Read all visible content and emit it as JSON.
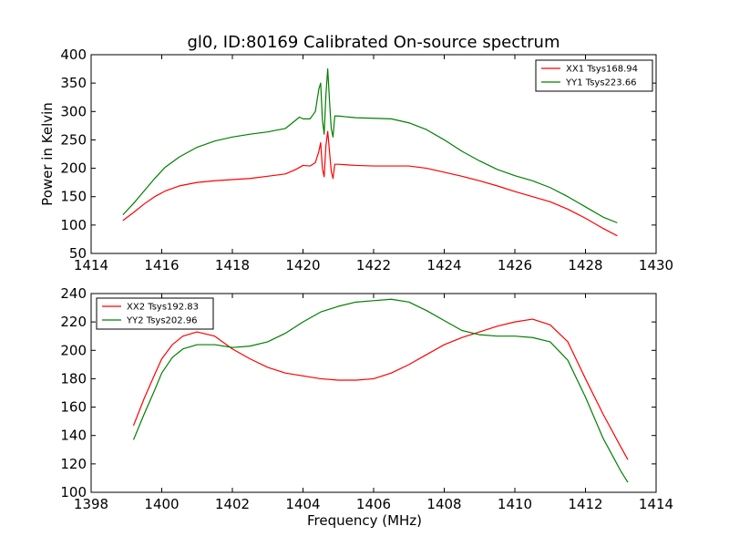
{
  "figure": {
    "title": "gl0, ID:80169 Calibrated On-source spectrum"
  },
  "chart_data": [
    {
      "type": "line",
      "title": "gl0, ID:80169 Calibrated On-source spectrum",
      "xlabel": "",
      "ylabel": "Power in Kelvin",
      "xlim": [
        1414,
        1430
      ],
      "ylim": [
        50,
        400
      ],
      "xticks": [
        1414,
        1416,
        1418,
        1420,
        1422,
        1424,
        1426,
        1428,
        1430
      ],
      "yticks": [
        50,
        100,
        150,
        200,
        250,
        300,
        350,
        400
      ],
      "grid": false,
      "legend_position": "top-right",
      "series": [
        {
          "name": "XX1 Tsys168.94",
          "color": "#ff0000",
          "x": [
            1414.9,
            1415.2,
            1415.5,
            1415.8,
            1416.1,
            1416.5,
            1417.0,
            1417.5,
            1418.0,
            1418.5,
            1419.0,
            1419.5,
            1419.8,
            1420.0,
            1420.2,
            1420.35,
            1420.45,
            1420.5,
            1420.55,
            1420.6,
            1420.65,
            1420.7,
            1420.75,
            1420.8,
            1420.85,
            1420.9,
            1421.0,
            1421.5,
            1422.0,
            1422.5,
            1423.0,
            1423.5,
            1424.0,
            1424.5,
            1425.0,
            1425.5,
            1426.0,
            1426.5,
            1427.0,
            1427.5,
            1428.0,
            1428.5,
            1428.9
          ],
          "values": [
            108,
            122,
            137,
            150,
            160,
            169,
            175,
            178,
            180,
            182,
            186,
            190,
            198,
            205,
            204,
            210,
            230,
            245,
            200,
            185,
            240,
            265,
            230,
            195,
            182,
            207,
            207,
            205,
            204,
            204,
            204,
            200,
            193,
            186,
            178,
            169,
            159,
            150,
            141,
            128,
            112,
            94,
            81
          ]
        },
        {
          "name": "YY1 Tsys223.66",
          "color": "#008000",
          "x": [
            1414.9,
            1415.2,
            1415.5,
            1415.8,
            1416.1,
            1416.5,
            1417.0,
            1417.5,
            1418.0,
            1418.5,
            1419.0,
            1419.5,
            1419.7,
            1419.9,
            1420.0,
            1420.2,
            1420.35,
            1420.45,
            1420.5,
            1420.55,
            1420.6,
            1420.65,
            1420.7,
            1420.75,
            1420.8,
            1420.85,
            1420.9,
            1421.0,
            1421.5,
            1422.0,
            1422.5,
            1423.0,
            1423.5,
            1424.0,
            1424.5,
            1425.0,
            1425.5,
            1426.0,
            1426.5,
            1427.0,
            1427.5,
            1428.0,
            1428.5,
            1428.9
          ],
          "values": [
            118,
            138,
            160,
            182,
            202,
            220,
            237,
            248,
            255,
            260,
            264,
            270,
            280,
            290,
            287,
            287,
            300,
            340,
            350,
            285,
            260,
            330,
            375,
            320,
            270,
            255,
            292,
            292,
            289,
            288,
            287,
            280,
            268,
            250,
            230,
            213,
            198,
            187,
            178,
            166,
            150,
            132,
            114,
            104
          ]
        }
      ]
    },
    {
      "type": "line",
      "title": "",
      "xlabel": "Frequency (MHz)",
      "ylabel": "",
      "xlim": [
        1398,
        1414
      ],
      "ylim": [
        100,
        240
      ],
      "xticks": [
        1398,
        1400,
        1402,
        1404,
        1406,
        1408,
        1410,
        1412,
        1414
      ],
      "yticks": [
        100,
        120,
        140,
        160,
        180,
        200,
        220,
        240
      ],
      "grid": false,
      "legend_position": "top-left",
      "series": [
        {
          "name": "XX2 Tsys192.83",
          "color": "#ff0000",
          "x": [
            1399.2,
            1399.5,
            1399.8,
            1400.0,
            1400.3,
            1400.6,
            1401.0,
            1401.5,
            1402.0,
            1402.5,
            1403.0,
            1403.5,
            1404.0,
            1404.5,
            1405.0,
            1405.5,
            1406.0,
            1406.5,
            1407.0,
            1407.5,
            1408.0,
            1408.5,
            1409.0,
            1409.5,
            1410.0,
            1410.5,
            1411.0,
            1411.5,
            1412.0,
            1412.5,
            1413.0,
            1413.2
          ],
          "values": [
            147,
            166,
            183,
            194,
            204,
            210,
            213,
            210,
            201,
            194,
            188,
            184,
            182,
            180,
            179,
            179,
            180,
            184,
            190,
            197,
            204,
            209,
            213,
            217,
            220,
            222,
            218,
            206,
            180,
            155,
            132,
            123
          ]
        },
        {
          "name": "YY2 Tsys202.96",
          "color": "#008000",
          "x": [
            1399.2,
            1399.5,
            1399.8,
            1400.0,
            1400.3,
            1400.6,
            1401.0,
            1401.5,
            1402.0,
            1402.5,
            1403.0,
            1403.5,
            1404.0,
            1404.5,
            1405.0,
            1405.5,
            1406.0,
            1406.5,
            1407.0,
            1407.5,
            1408.0,
            1408.5,
            1409.0,
            1409.5,
            1410.0,
            1410.5,
            1411.0,
            1411.5,
            1412.0,
            1412.5,
            1413.0,
            1413.2
          ],
          "values": [
            137,
            155,
            172,
            184,
            195,
            201,
            204,
            204,
            202,
            203,
            206,
            212,
            220,
            227,
            231,
            234,
            235,
            236,
            234,
            228,
            221,
            214,
            211,
            210,
            210,
            209,
            206,
            193,
            167,
            138,
            115,
            107
          ]
        }
      ]
    }
  ]
}
